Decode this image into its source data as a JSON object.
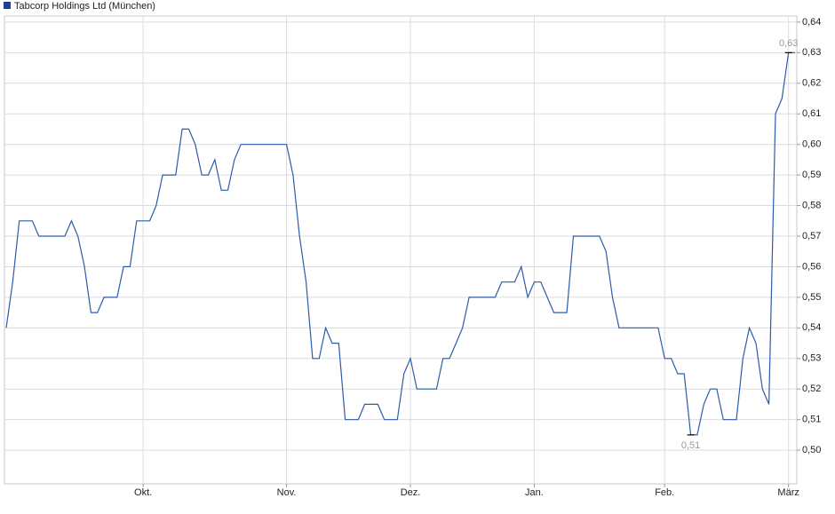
{
  "chart_data": {
    "type": "line",
    "categories": [
      null,
      null,
      null,
      null,
      null,
      null,
      null,
      null,
      null,
      null,
      null,
      null,
      null,
      null,
      null,
      null,
      null,
      null,
      null,
      null,
      null,
      "Okt.",
      null,
      null,
      null,
      null,
      null,
      null,
      null,
      null,
      null,
      null,
      null,
      null,
      null,
      null,
      null,
      null,
      null,
      null,
      null,
      null,
      null,
      "Nov.",
      null,
      null,
      null,
      null,
      null,
      null,
      null,
      null,
      null,
      null,
      null,
      null,
      null,
      null,
      null,
      null,
      null,
      null,
      "Dez.",
      null,
      null,
      null,
      null,
      null,
      null,
      null,
      null,
      null,
      null,
      null,
      null,
      null,
      null,
      null,
      null,
      null,
      null,
      "Jan.",
      null,
      null,
      null,
      null,
      null,
      null,
      null,
      null,
      null,
      null,
      null,
      null,
      null,
      null,
      null,
      null,
      null,
      null,
      null,
      "Feb.",
      null,
      null,
      null,
      null,
      null,
      null,
      null,
      null,
      null,
      null,
      null,
      null,
      null,
      null,
      null,
      null,
      null,
      null,
      "März",
      null
    ],
    "series": [
      {
        "name": "Tabcorp Holdings Ltd (München)",
        "color": "#2a5caa",
        "values": [
          0.54,
          0.555,
          0.575,
          0.575,
          0.575,
          0.57,
          0.57,
          0.57,
          0.57,
          0.57,
          0.575,
          0.57,
          0.56,
          0.545,
          0.545,
          0.55,
          0.55,
          0.55,
          0.56,
          0.56,
          0.575,
          0.575,
          0.575,
          0.58,
          0.59,
          0.59,
          0.59,
          0.605,
          0.605,
          0.6,
          0.59,
          0.59,
          0.595,
          0.585,
          0.585,
          0.595,
          0.6,
          0.6,
          0.6,
          0.6,
          0.6,
          0.6,
          0.6,
          0.6,
          0.59,
          0.57,
          0.555,
          0.53,
          0.53,
          0.54,
          0.535,
          0.535,
          0.51,
          0.51,
          0.51,
          0.515,
          0.515,
          0.515,
          0.51,
          0.51,
          0.51,
          0.525,
          0.53,
          0.52,
          0.52,
          0.52,
          0.52,
          0.53,
          0.53,
          0.535,
          0.54,
          0.55,
          0.55,
          0.55,
          0.55,
          0.55,
          0.555,
          0.555,
          0.555,
          0.56,
          0.55,
          0.555,
          0.555,
          0.55,
          0.545,
          0.545,
          0.545,
          0.57,
          0.57,
          0.57,
          0.57,
          0.57,
          0.565,
          0.55,
          0.54,
          0.54,
          0.54,
          0.54,
          0.54,
          0.54,
          0.54,
          0.53,
          0.53,
          0.525,
          0.525,
          0.505,
          0.505,
          0.515,
          0.52,
          0.52,
          0.51,
          0.51,
          0.51,
          0.53,
          0.54,
          0.535,
          0.52,
          0.515,
          0.61,
          0.615,
          0.63,
          0.63
        ],
        "value_labels": [
          null,
          null,
          null,
          null,
          null,
          null,
          null,
          null,
          null,
          null,
          null,
          null,
          null,
          null,
          null,
          null,
          null,
          null,
          null,
          null,
          null,
          null,
          null,
          null,
          null,
          null,
          null,
          null,
          null,
          null,
          null,
          null,
          null,
          null,
          null,
          null,
          null,
          null,
          null,
          null,
          null,
          null,
          null,
          null,
          null,
          null,
          null,
          null,
          null,
          null,
          null,
          null,
          null,
          null,
          null,
          null,
          null,
          null,
          null,
          null,
          null,
          null,
          null,
          null,
          null,
          null,
          null,
          null,
          null,
          null,
          null,
          null,
          null,
          null,
          null,
          null,
          null,
          null,
          null,
          null,
          null,
          null,
          null,
          null,
          null,
          null,
          null,
          null,
          null,
          null,
          null,
          null,
          null,
          null,
          null,
          null,
          null,
          null,
          null,
          null,
          null,
          null,
          null,
          null,
          null,
          "0,51",
          null,
          null,
          null,
          null,
          null,
          null,
          null,
          null,
          null,
          null,
          null,
          null,
          null,
          null,
          "0,63",
          null
        ]
      }
    ],
    "legend_color": "#1f3f8f",
    "ylim": [
      0.489,
      0.642
    ],
    "yticks": [
      {
        "value": 0.5,
        "label": "0,50"
      },
      {
        "value": 0.51,
        "label": "0,51"
      },
      {
        "value": 0.52,
        "label": "0,52"
      },
      {
        "value": 0.53,
        "label": "0,53"
      },
      {
        "value": 0.54,
        "label": "0,54"
      },
      {
        "value": 0.55,
        "label": "0,55"
      },
      {
        "value": 0.56,
        "label": "0,56"
      },
      {
        "value": 0.57,
        "label": "0,57"
      },
      {
        "value": 0.58,
        "label": "0,58"
      },
      {
        "value": 0.59,
        "label": "0,59"
      },
      {
        "value": 0.6,
        "label": "0,60"
      },
      {
        "value": 0.61,
        "label": "0,61"
      },
      {
        "value": 0.62,
        "label": "0,62"
      },
      {
        "value": 0.63,
        "label": "0,63"
      },
      {
        "value": 0.64,
        "label": "0,64"
      }
    ],
    "grid": true
  }
}
